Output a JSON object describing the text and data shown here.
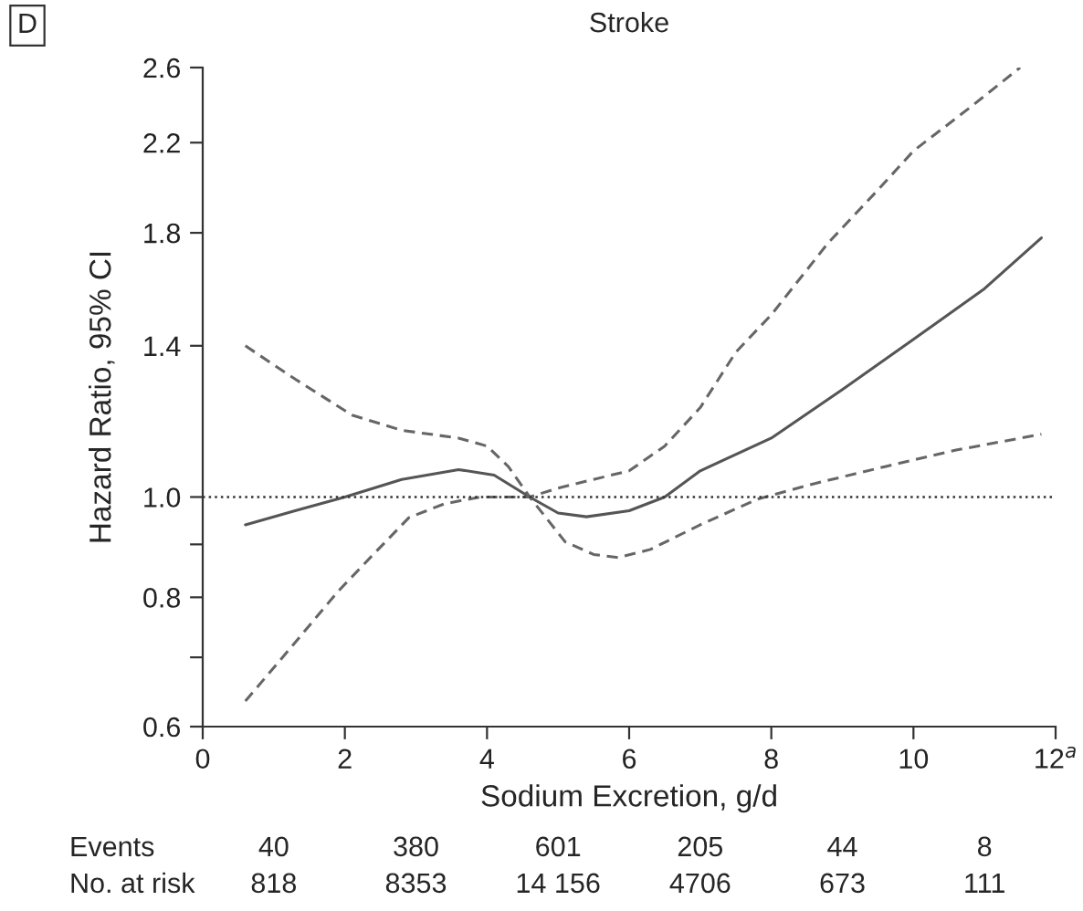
{
  "chart_data": {
    "type": "line",
    "title": "Stroke",
    "xlabel": "Sodium Excretion, g/d",
    "ylabel": "Hazard Ratio, 95% CI",
    "log": true,
    "xlim": [
      0,
      12
    ],
    "ylim": [
      0.6,
      2.6
    ],
    "xticks": [
      0,
      2,
      4,
      6,
      8,
      10,
      {
        "value": 12,
        "label": "12$^{a}$"
      }
    ],
    "yticks": [
      0.6,
      {
        "value": 0.7,
        "label": null
      },
      0.8,
      {
        "value": 0.9,
        "label": null
      },
      {
        "value": 1.0,
        "label": "1.0"
      },
      1.4,
      1.8,
      2.2,
      2.6
    ],
    "grid": false,
    "ref_lines": [
      {
        "axis": "y",
        "value": 1.0,
        "line_style": "dotted",
        "color": "#333333"
      }
    ],
    "series": [
      {
        "color": "#555555",
        "line_style": "solid",
        "x": [
          0.6,
          1.3,
          2.0,
          2.8,
          3.6,
          4.1,
          4.6,
          5.0,
          5.4,
          6.0,
          6.5,
          7.0,
          8.0,
          9.0,
          10.0,
          11.0,
          11.8
        ],
        "values": [
          0.94,
          0.97,
          1.0,
          1.04,
          1.063,
          1.05,
          1.0,
          0.965,
          0.957,
          0.97,
          1.0,
          1.06,
          1.14,
          1.27,
          1.42,
          1.59,
          1.78
        ]
      },
      {
        "color": "#666666",
        "line_style": "dashed",
        "x": [
          0.6,
          1.3,
          2.1,
          2.8,
          3.6,
          4.0,
          4.3,
          4.6,
          5.0,
          5.5,
          6.0,
          6.5,
          7.0,
          7.5,
          8.0,
          8.8,
          9.5,
          10.0,
          10.8,
          11.5
        ],
        "values": [
          1.4,
          1.3,
          1.2,
          1.16,
          1.14,
          1.12,
          1.07,
          1.0,
          1.02,
          1.04,
          1.06,
          1.12,
          1.22,
          1.38,
          1.5,
          1.76,
          1.98,
          2.16,
          2.38,
          2.6
        ]
      },
      {
        "color": "#666666",
        "line_style": "dashed",
        "x": [
          0.6,
          1.2,
          1.9,
          2.4,
          2.9,
          3.4,
          3.9,
          4.3,
          4.6,
          5.1,
          5.5,
          5.85,
          6.3,
          7.0,
          7.8,
          8.6,
          9.6,
          10.6,
          11.8
        ],
        "values": [
          0.635,
          0.71,
          0.81,
          0.88,
          0.955,
          0.985,
          1.0,
          1.0,
          1.0,
          0.905,
          0.88,
          0.874,
          0.89,
          0.94,
          0.995,
          1.03,
          1.07,
          1.11,
          1.15
        ]
      }
    ],
    "annotations": [
      "D",
      "Events",
      "40",
      "380",
      "601",
      "205",
      "44",
      "8",
      "No. at risk",
      "818",
      "8353",
      "14 156",
      "4706",
      "673",
      "111"
    ]
  }
}
